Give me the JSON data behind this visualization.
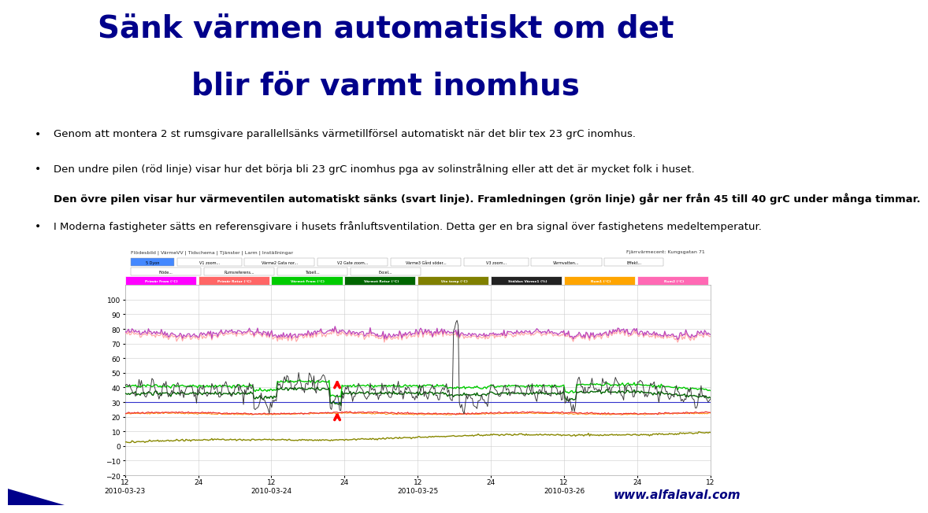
{
  "title_line1": "Sänk värmen automatiskt om det",
  "title_line2": "blir för varmt inomhus",
  "title_color": "#00008B",
  "title_fontsize": 28,
  "bullet_fontsize": 9.5,
  "background_color": "#FFFFFF",
  "chart_area_bg": "#FFFFFF",
  "chart_outer_bg": "#F0F0F0",
  "footer_text": "www.alfalaval.com",
  "footer_color": "#000080",
  "ylim": [
    -20,
    110
  ],
  "yticks": [
    -20,
    -10,
    0,
    10,
    20,
    30,
    40,
    50,
    60,
    70,
    80,
    90,
    100
  ],
  "legend_labels": [
    "Primär Fram (°C)",
    "Primär Retur (°C)",
    "Värmet Fram (°C)",
    "Värmet Retur (°C)",
    "Ute temp (°C)",
    "Stäldon Värme1 (%)",
    "Rum1 (°C)",
    "Rum2 (°C)"
  ],
  "legend_bg_colors": [
    "#FF00FF",
    "#FF6666",
    "#00CC00",
    "#006600",
    "#808000",
    "#222222",
    "#FFA500",
    "#FF69B4"
  ],
  "nav_text": "Flödesbild | VärmeVV | Tidschema | Tjänster | Larm | Inställningar",
  "nav_right": "Fjärrvärmecent: Kungsgatan 71",
  "bullet1": "Genom att montera 2 st rumsgivare parallellsänks värmetillförsel automatiskt när det blir tex 23 grC inomhus.",
  "bullet2a": "Den undre pilen (röd linje) visar hur det börja bli 23 grC inomhus pga av solinstrålning eller att det är mycket folk i huset. ",
  "bullet2b": "Den övre pilen visar hur värmeventilen automatiskt sänks (svart linje). Framledningen (grön linje) går ner från 45 till 40 grC under många timmar.",
  "bullet3": "I Moderna fastigheter sätts en referensgivare i husets frånluftsventilation. Detta ger en bra signal över fastighetens medeltemperatur."
}
